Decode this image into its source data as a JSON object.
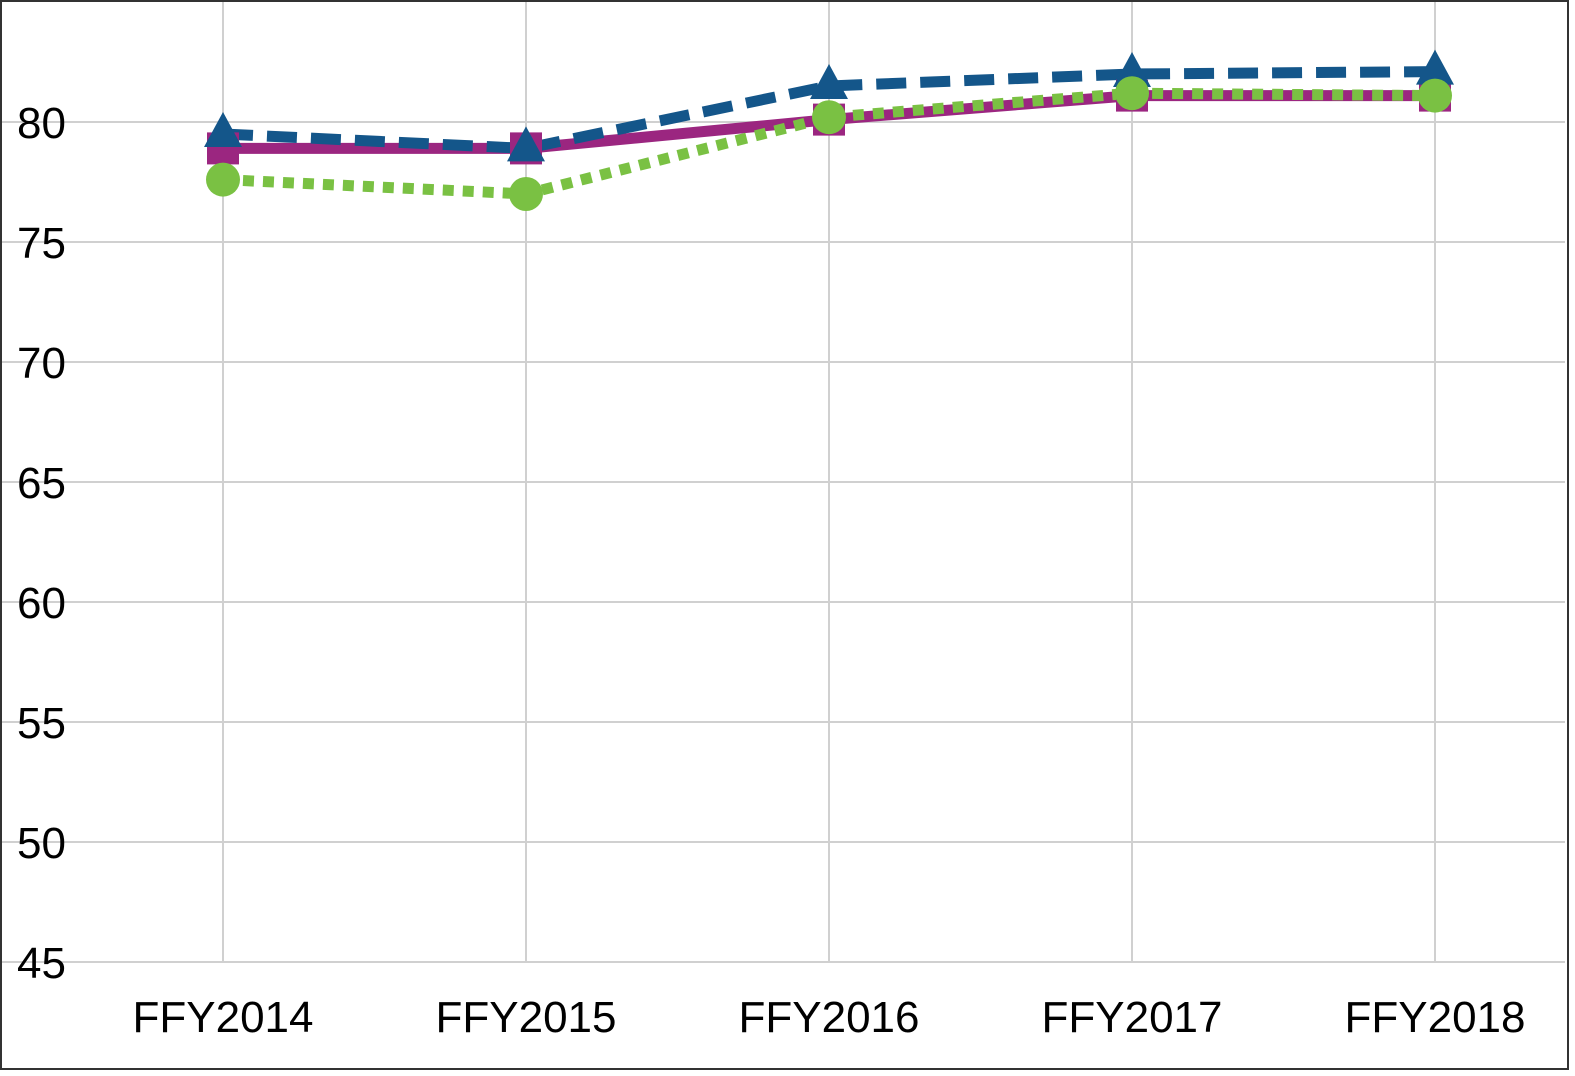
{
  "chart_data": {
    "type": "line",
    "title": "",
    "xlabel": "",
    "ylabel": "",
    "categories": [
      "FFY2014",
      "FFY2015",
      "FFY2016",
      "FFY2017",
      "FFY2018"
    ],
    "ylim": [
      45,
      85
    ],
    "yticks": [
      45,
      50,
      55,
      60,
      65,
      70,
      75,
      80
    ],
    "grid": true,
    "legend": "none",
    "series": [
      {
        "color": "#9b2680",
        "line_style": "solid",
        "marker": "square",
        "values": [
          78.9,
          78.9,
          80.1,
          81.1,
          81.1
        ]
      },
      {
        "color": "#14568a",
        "line_style": "dashed",
        "marker": "triangle",
        "values": [
          79.5,
          78.9,
          81.5,
          82.0,
          82.1
        ]
      },
      {
        "color": "#7ac143",
        "line_style": "dotted",
        "marker": "circle",
        "values": [
          77.6,
          77.0,
          80.2,
          81.2,
          81.1
        ]
      }
    ]
  }
}
